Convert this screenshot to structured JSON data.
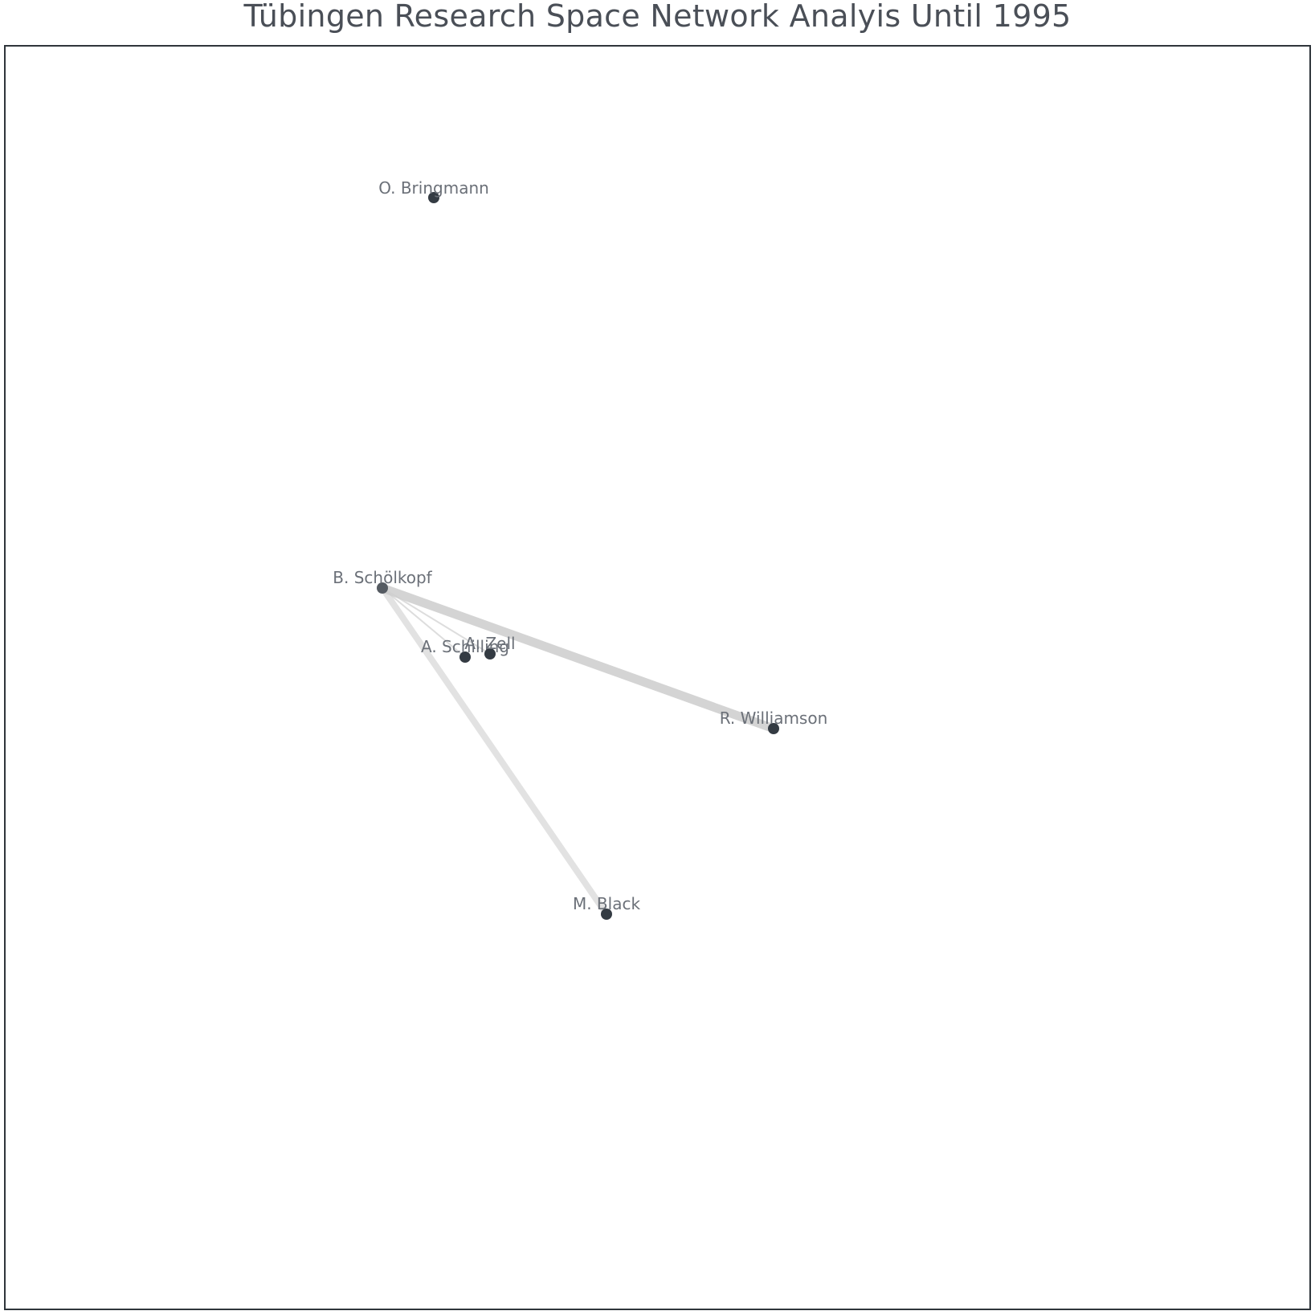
{
  "title": "Tübingen Research Space Network Analyis Until 1995",
  "colors": {
    "node": "#343b43",
    "node_highlight": "#555b62",
    "edge": "#cfcfcf",
    "label": "#6b7078",
    "frame": "#2f353b"
  },
  "nodes": [
    {
      "id": "bringmann",
      "label": "O. Bringmann"
    },
    {
      "id": "schoelkopf",
      "label": "B. Schölkopf"
    },
    {
      "id": "schilling",
      "label": "A. Schilling"
    },
    {
      "id": "zell",
      "label": "A. Zell"
    },
    {
      "id": "williamson",
      "label": "R. Williamson"
    },
    {
      "id": "black",
      "label": "M. Black"
    }
  ],
  "edges": [
    {
      "source": "schoelkopf",
      "target": "williamson",
      "weight": 5
    },
    {
      "source": "schoelkopf",
      "target": "black",
      "weight": 3
    },
    {
      "source": "schoelkopf",
      "target": "schilling",
      "weight": 1
    },
    {
      "source": "schoelkopf",
      "target": "zell",
      "weight": 1
    }
  ]
}
